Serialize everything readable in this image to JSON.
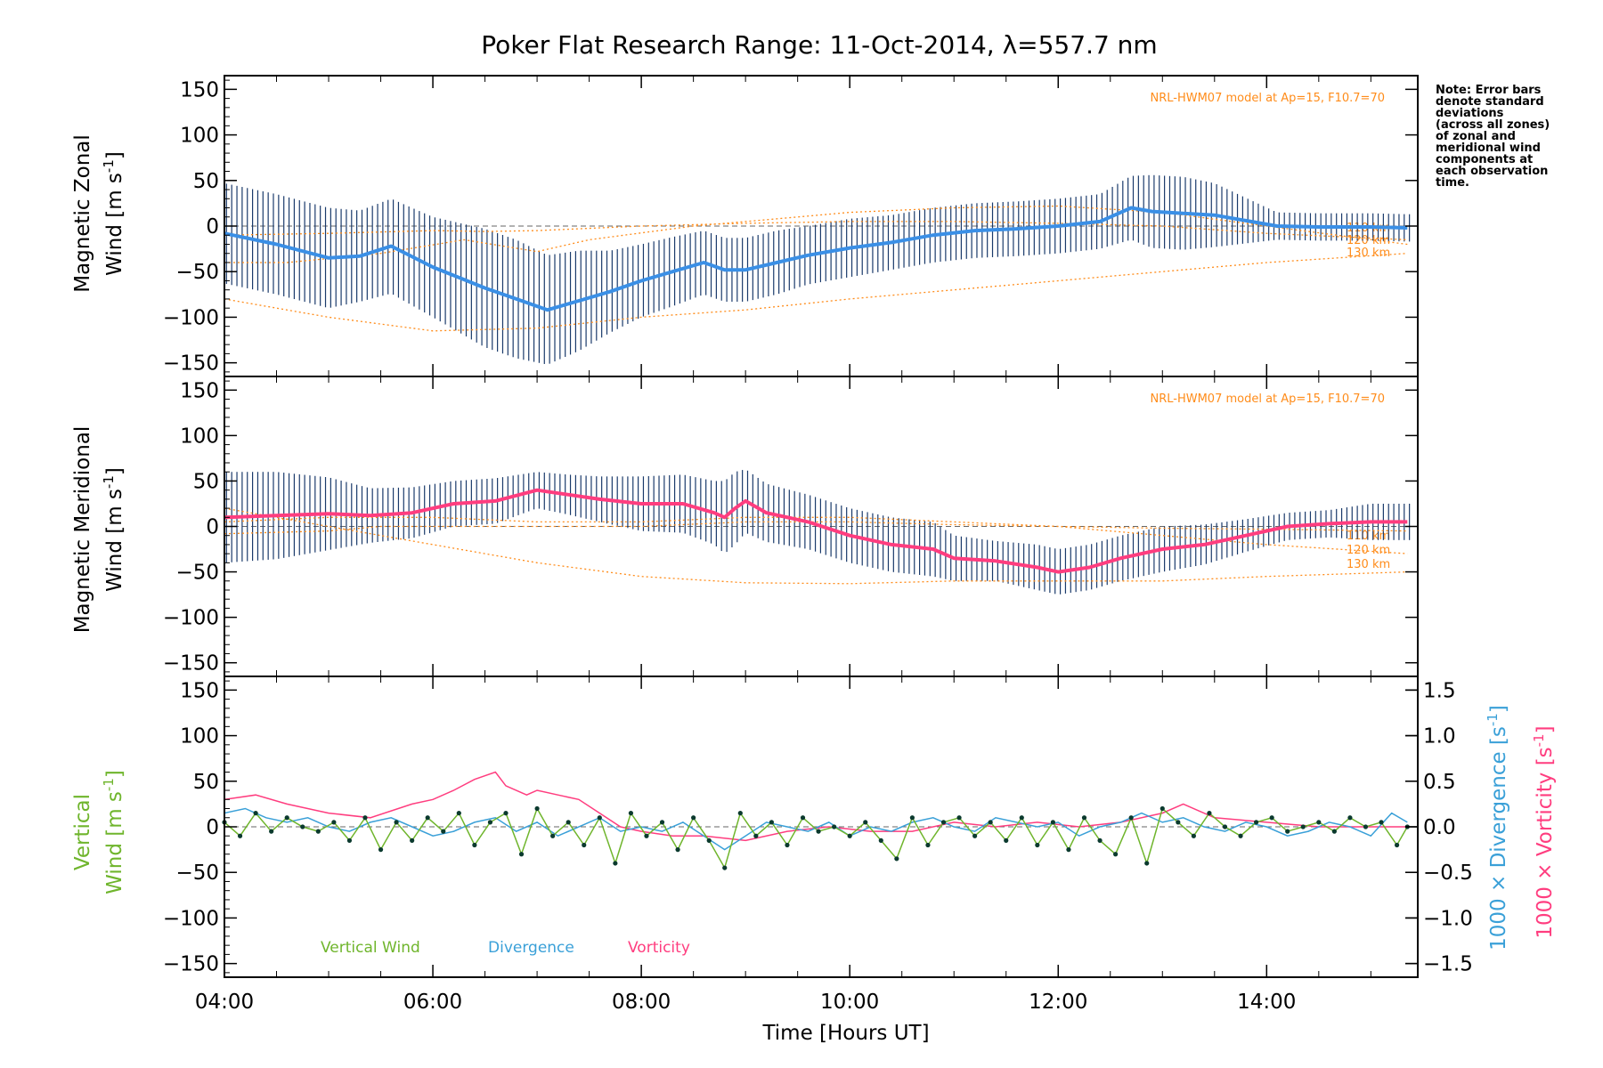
{
  "title": "Poker Flat Research Range: 11-Oct-2014, λ=557.7 nm",
  "note": {
    "lines": [
      "Note: Error bars",
      "denote standard",
      "deviations",
      "(across all zones)",
      "of zonal and",
      "meridional wind",
      "components at",
      "each observation",
      "time."
    ]
  },
  "model_label": "NRL-HWM07 model at Ap=15, F10.7=70",
  "altitude_labels": [
    "110 km",
    "120 km",
    "130 km"
  ],
  "legend": {
    "vertical": "Vertical Wind",
    "divergence": "Divergence",
    "vorticity": "Vorticity"
  },
  "colors": {
    "zonal_mean": "#3a8fe6",
    "meridional_mean": "#ff3d7f",
    "vertical": "#6fb52c",
    "divergence": "#3aa0d8",
    "vorticity": "#ff3d7f",
    "model": "#ff8c1a",
    "errorbar": "#1a3a6b",
    "scatter": "#9a9ae8"
  },
  "chart_data": [
    {
      "type": "line",
      "panel": "zonal",
      "ylabel_line1": "Magnetic Zonal",
      "ylabel_line2": "Wind [m s",
      "ylabel_sup": "-1",
      "ylabel_close": "]",
      "ylim": [
        -165,
        165
      ],
      "yticks": [
        -150,
        -100,
        -50,
        0,
        50,
        100,
        150
      ],
      "ytick_labels": [
        "−150",
        "−100",
        "−50",
        "0",
        "50",
        "100",
        "150"
      ],
      "series": [
        {
          "role": "mean",
          "x": [
            4.0,
            4.5,
            5.0,
            5.3,
            5.6,
            6.0,
            6.5,
            6.8,
            7.1,
            7.4,
            7.7,
            8.0,
            8.3,
            8.6,
            8.8,
            9.0,
            9.3,
            9.6,
            10.0,
            10.4,
            10.8,
            11.2,
            11.6,
            12.0,
            12.4,
            12.7,
            12.9,
            13.2,
            13.5,
            13.8,
            14.1,
            14.5,
            15.0,
            15.35
          ],
          "y": [
            -8,
            -20,
            -35,
            -33,
            -22,
            -45,
            -68,
            -80,
            -92,
            -82,
            -72,
            -60,
            -50,
            -40,
            -48,
            -48,
            -40,
            -32,
            -24,
            -18,
            -10,
            -5,
            -3,
            0,
            5,
            20,
            16,
            14,
            12,
            6,
            0,
            -1,
            -1,
            -2
          ],
          "err": [
            55,
            55,
            55,
            50,
            52,
            55,
            65,
            65,
            60,
            55,
            45,
            40,
            38,
            35,
            35,
            35,
            35,
            32,
            32,
            30,
            30,
            30,
            30,
            30,
            30,
            35,
            40,
            40,
            35,
            25,
            15,
            15,
            15,
            15
          ]
        },
        {
          "name": "110 km",
          "role": "model",
          "x": [
            4.0,
            5.0,
            6.0,
            6.5,
            7.0,
            8.0,
            9.0,
            10.0,
            11.0,
            12.0,
            13.0,
            14.0,
            15.35
          ],
          "y": [
            -10,
            -8,
            -5,
            -6,
            -5,
            0,
            3,
            5,
            5,
            3,
            0,
            -8,
            -15
          ]
        },
        {
          "name": "120 km",
          "role": "model",
          "x": [
            4.0,
            4.6,
            5.5,
            6.3,
            7.0,
            7.5,
            8.5,
            9.5,
            10.0,
            11.0,
            12.0,
            13.0,
            14.0,
            15.35
          ],
          "y": [
            -40,
            -40,
            -30,
            -15,
            -28,
            -15,
            0,
            10,
            15,
            20,
            22,
            15,
            0,
            -20
          ]
        },
        {
          "name": "130 km",
          "role": "model",
          "x": [
            4.0,
            4.5,
            5.0,
            6.0,
            7.0,
            8.0,
            9.0,
            10.0,
            11.0,
            12.0,
            13.0,
            14.0,
            15.35
          ],
          "y": [
            -80,
            -90,
            -100,
            -115,
            -112,
            -100,
            -92,
            -80,
            -70,
            -60,
            -50,
            -40,
            -30
          ]
        }
      ]
    },
    {
      "type": "line",
      "panel": "meridional",
      "ylabel_line1": "Magnetic Meridional",
      "ylabel_line2": "Wind [m s",
      "ylabel_sup": "-1",
      "ylabel_close": "]",
      "ylim": [
        -165,
        165
      ],
      "yticks": [
        -150,
        -100,
        -50,
        0,
        50,
        100,
        150
      ],
      "ytick_labels": [
        "−150",
        "−100",
        "−50",
        "0",
        "50",
        "100",
        "150"
      ],
      "series": [
        {
          "role": "mean",
          "x": [
            4.0,
            4.5,
            5.0,
            5.4,
            5.8,
            6.2,
            6.6,
            7.0,
            7.3,
            7.6,
            8.0,
            8.4,
            8.7,
            8.8,
            8.9,
            9.0,
            9.2,
            9.6,
            10.0,
            10.4,
            10.8,
            11.0,
            11.4,
            11.8,
            12.0,
            12.3,
            12.6,
            13.0,
            13.4,
            13.8,
            14.2,
            14.6,
            15.0,
            15.35
          ],
          "y": [
            10,
            12,
            14,
            12,
            15,
            25,
            28,
            40,
            35,
            30,
            25,
            25,
            15,
            10,
            20,
            28,
            15,
            5,
            -10,
            -20,
            -25,
            -35,
            -38,
            -45,
            -50,
            -45,
            -35,
            -25,
            -20,
            -10,
            0,
            3,
            5,
            5
          ],
          "err": [
            50,
            48,
            40,
            30,
            28,
            25,
            25,
            20,
            22,
            25,
            30,
            32,
            35,
            40,
            40,
            35,
            32,
            30,
            30,
            30,
            30,
            25,
            22,
            25,
            25,
            25,
            25,
            25,
            22,
            18,
            15,
            15,
            20,
            20
          ]
        },
        {
          "name": "110 km",
          "role": "model",
          "x": [
            4.0,
            5.0,
            5.5,
            6.0,
            7.0,
            8.0,
            9.0,
            10.0,
            11.0,
            12.0,
            13.0,
            14.0,
            15.35
          ],
          "y": [
            -8,
            -5,
            0,
            0,
            0,
            0,
            5,
            5,
            2,
            0,
            -2,
            -3,
            -5
          ]
        },
        {
          "name": "120 km",
          "role": "model",
          "x": [
            4.0,
            5.0,
            6.0,
            7.0,
            8.0,
            9.0,
            10.0,
            11.0,
            12.0,
            13.0,
            14.0,
            15.35
          ],
          "y": [
            5,
            10,
            10,
            5,
            5,
            10,
            10,
            5,
            0,
            -10,
            -20,
            -30
          ]
        },
        {
          "name": "130 km",
          "role": "model",
          "x": [
            4.0,
            5.0,
            6.0,
            7.0,
            8.0,
            9.0,
            10.0,
            11.0,
            12.0,
            13.0,
            14.0,
            15.35
          ],
          "y": [
            20,
            0,
            -20,
            -40,
            -55,
            -62,
            -63,
            -60,
            -60,
            -60,
            -55,
            -50
          ]
        }
      ]
    },
    {
      "type": "line",
      "panel": "vertical",
      "ylabel_line1": "Vertical",
      "ylabel_line2": "Wind [m s",
      "ylabel_sup": "-1",
      "ylabel_close": "]",
      "ylim": [
        -165,
        165
      ],
      "yticks": [
        -150,
        -100,
        -50,
        0,
        50,
        100,
        150
      ],
      "ytick_labels": [
        "−150",
        "−100",
        "−50",
        "0",
        "50",
        "100",
        "150"
      ],
      "y2lim": [
        -1.65,
        1.65
      ],
      "y2ticks": [
        -1.5,
        -1.0,
        -0.5,
        0.0,
        0.5,
        1.0,
        1.5
      ],
      "y2tick_labels": [
        "−1.5",
        "−1.0",
        "−0.5",
        "0.0",
        "0.5",
        "1.0",
        "1.5"
      ],
      "y2label_div": "1000 × Divergence [s",
      "y2label_vor": "1000 × Vorticity [s",
      "y2label_sup": "-1",
      "y2label_close": "]",
      "series": [
        {
          "name": "Vertical Wind",
          "x": [
            4.0,
            4.15,
            4.3,
            4.45,
            4.6,
            4.75,
            4.9,
            5.05,
            5.2,
            5.35,
            5.5,
            5.65,
            5.8,
            5.95,
            6.1,
            6.25,
            6.4,
            6.55,
            6.7,
            6.85,
            7.0,
            7.15,
            7.3,
            7.45,
            7.6,
            7.75,
            7.9,
            8.05,
            8.2,
            8.35,
            8.5,
            8.65,
            8.8,
            8.95,
            9.1,
            9.25,
            9.4,
            9.55,
            9.7,
            9.85,
            10.0,
            10.15,
            10.3,
            10.45,
            10.6,
            10.75,
            10.9,
            11.05,
            11.2,
            11.35,
            11.5,
            11.65,
            11.8,
            11.95,
            12.1,
            12.25,
            12.4,
            12.55,
            12.7,
            12.85,
            13.0,
            13.15,
            13.3,
            13.45,
            13.6,
            13.75,
            13.9,
            14.05,
            14.2,
            14.35,
            14.5,
            14.65,
            14.8,
            14.95,
            15.1,
            15.25,
            15.35
          ],
          "y": [
            5,
            -10,
            15,
            -5,
            10,
            0,
            -5,
            5,
            -15,
            10,
            -25,
            5,
            -15,
            10,
            -5,
            15,
            -20,
            5,
            15,
            -30,
            20,
            -10,
            5,
            -20,
            10,
            -40,
            15,
            -10,
            5,
            -25,
            10,
            -15,
            -45,
            15,
            -10,
            5,
            -20,
            10,
            -5,
            0,
            -10,
            5,
            -15,
            -35,
            10,
            -20,
            5,
            10,
            -10,
            5,
            -15,
            10,
            -20,
            5,
            -25,
            10,
            -15,
            -30,
            10,
            -40,
            20,
            5,
            -10,
            15,
            0,
            -10,
            5,
            10,
            -5,
            0,
            5,
            -5,
            10,
            0,
            5,
            -20,
            0
          ]
        },
        {
          "name": "Divergence",
          "axis": "right",
          "x": [
            4.0,
            4.2,
            4.4,
            4.6,
            4.8,
            5.0,
            5.2,
            5.4,
            5.6,
            5.8,
            6.0,
            6.2,
            6.4,
            6.6,
            6.8,
            7.0,
            7.2,
            7.4,
            7.6,
            7.8,
            8.0,
            8.2,
            8.4,
            8.6,
            8.8,
            9.0,
            9.2,
            9.4,
            9.6,
            9.8,
            10.0,
            10.2,
            10.4,
            10.6,
            10.8,
            11.0,
            11.2,
            11.4,
            11.6,
            11.8,
            12.0,
            12.2,
            12.4,
            12.6,
            12.8,
            13.0,
            13.2,
            13.4,
            13.6,
            13.8,
            14.0,
            14.2,
            14.4,
            14.6,
            14.8,
            15.0,
            15.2,
            15.35
          ],
          "y": [
            0.15,
            0.2,
            0.1,
            0.05,
            0.1,
            0.0,
            -0.05,
            0.05,
            0.1,
            0.0,
            -0.1,
            -0.05,
            0.05,
            0.1,
            -0.05,
            0.05,
            -0.1,
            0.0,
            0.1,
            -0.05,
            0.0,
            -0.05,
            0.05,
            -0.1,
            -0.25,
            -0.1,
            0.05,
            0.0,
            -0.05,
            0.05,
            -0.1,
            0.0,
            -0.05,
            0.05,
            0.1,
            0.0,
            -0.05,
            0.1,
            0.05,
            0.0,
            0.05,
            -0.1,
            0.0,
            0.05,
            0.15,
            0.05,
            0.1,
            0.0,
            -0.05,
            0.05,
            0.0,
            -0.1,
            -0.05,
            0.05,
            0.0,
            -0.1,
            0.15,
            0.05
          ]
        },
        {
          "name": "Vorticity",
          "axis": "right",
          "x": [
            4.0,
            4.3,
            4.6,
            5.0,
            5.4,
            5.8,
            6.0,
            6.2,
            6.4,
            6.6,
            6.7,
            6.9,
            7.0,
            7.2,
            7.4,
            7.6,
            7.8,
            8.0,
            8.3,
            8.6,
            9.0,
            9.4,
            9.8,
            10.2,
            10.6,
            11.0,
            11.4,
            11.8,
            12.2,
            12.6,
            13.0,
            13.2,
            13.5,
            14.0,
            14.5,
            15.0,
            15.35
          ],
          "y": [
            0.3,
            0.35,
            0.25,
            0.15,
            0.1,
            0.25,
            0.3,
            0.4,
            0.52,
            0.6,
            0.45,
            0.35,
            0.4,
            0.35,
            0.3,
            0.15,
            0.0,
            -0.05,
            -0.1,
            -0.1,
            -0.15,
            -0.05,
            0.0,
            -0.05,
            -0.05,
            0.05,
            0.0,
            0.05,
            0.0,
            0.05,
            0.15,
            0.25,
            0.1,
            0.05,
            0.0,
            0.0,
            0.0
          ]
        }
      ]
    }
  ],
  "xaxis": {
    "label": "Time [Hours UT]",
    "xlim": [
      4.0,
      15.45
    ],
    "ticks": [
      4,
      6,
      8,
      10,
      12,
      14
    ],
    "tick_labels": [
      "04:00",
      "06:00",
      "08:00",
      "10:00",
      "12:00",
      "14:00"
    ]
  }
}
